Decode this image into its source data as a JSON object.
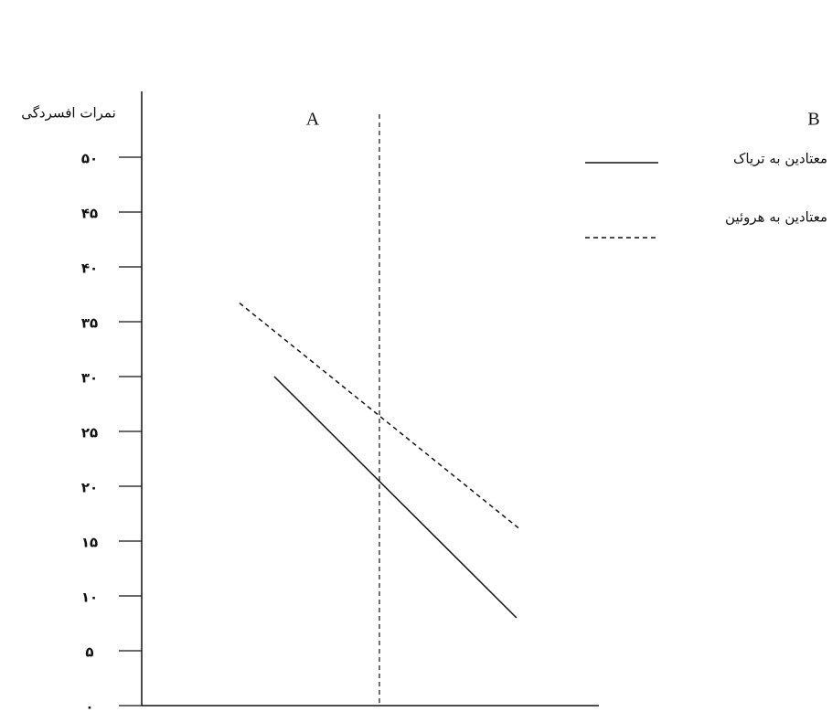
{
  "chart_data": {
    "type": "line",
    "y_label": "نمرات افسردگی",
    "annotations": [
      "A",
      "B"
    ],
    "xlim": [
      0,
      10
    ],
    "ylim": [
      0,
      56
    ],
    "yticks": [
      {
        "value": 0,
        "label": "۰"
      },
      {
        "value": 5,
        "label": "۵"
      },
      {
        "value": 10,
        "label": "۱۰"
      },
      {
        "value": 15,
        "label": "۱۵"
      },
      {
        "value": 20,
        "label": "۲۰"
      },
      {
        "value": 25,
        "label": "۲۵"
      },
      {
        "value": 30,
        "label": "۳۰"
      },
      {
        "value": 35,
        "label": "۳۵"
      },
      {
        "value": 40,
        "label": "۴۰"
      },
      {
        "value": 45,
        "label": "۴۵"
      },
      {
        "value": 50,
        "label": "۵۰"
      }
    ],
    "vline": 5.2,
    "series": [
      {
        "name": "معتادین به تریاک",
        "color": "#111111",
        "dash": false,
        "x": [
          2.9,
          8.2
        ],
        "values": [
          30,
          8
        ]
      },
      {
        "name": "معتادین به هروئین",
        "color": "#111111",
        "dash": true,
        "x": [
          2.14,
          8.24
        ],
        "values": [
          36.7,
          16.2
        ]
      }
    ]
  }
}
